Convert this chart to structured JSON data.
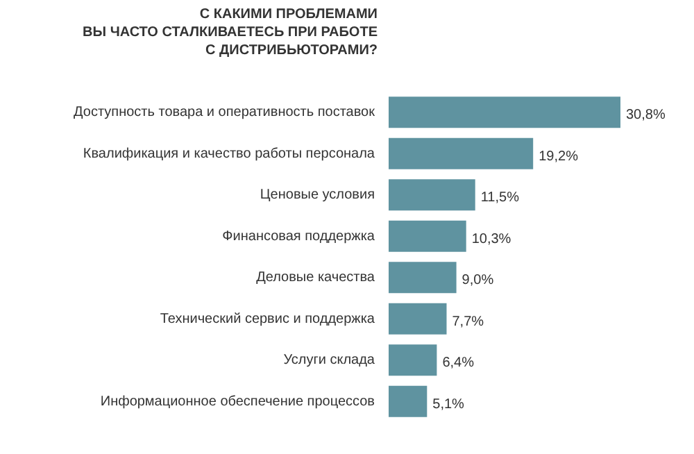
{
  "chart_data": {
    "type": "bar",
    "orientation": "horizontal",
    "title": "С КАКИМИ ПРОБЛЕМАМИ\nВЫ ЧАСТО СТАЛКИВАЕТЕСЬ ПРИ РАБОТЕ\nС ДИСТРИБЬЮТОРАМИ?",
    "categories": [
      "Доступность товара и оперативность поставок",
      "Квалификация и качество работы персонала",
      "Ценовые условия",
      "Финансовая поддержка",
      "Деловые качества",
      "Технический сервис и поддержка",
      "Услуги склада",
      "Информационное обеспечение процессов"
    ],
    "values": [
      30.8,
      19.2,
      11.5,
      10.3,
      9.0,
      7.7,
      6.4,
      5.1
    ],
    "value_labels": [
      "30,8%",
      "19,2%",
      "11,5%",
      "10,3%",
      "9,0%",
      "7,7%",
      "6,4%",
      "5,1%"
    ],
    "color": "#5f93a0",
    "grid": false,
    "legend": false
  }
}
